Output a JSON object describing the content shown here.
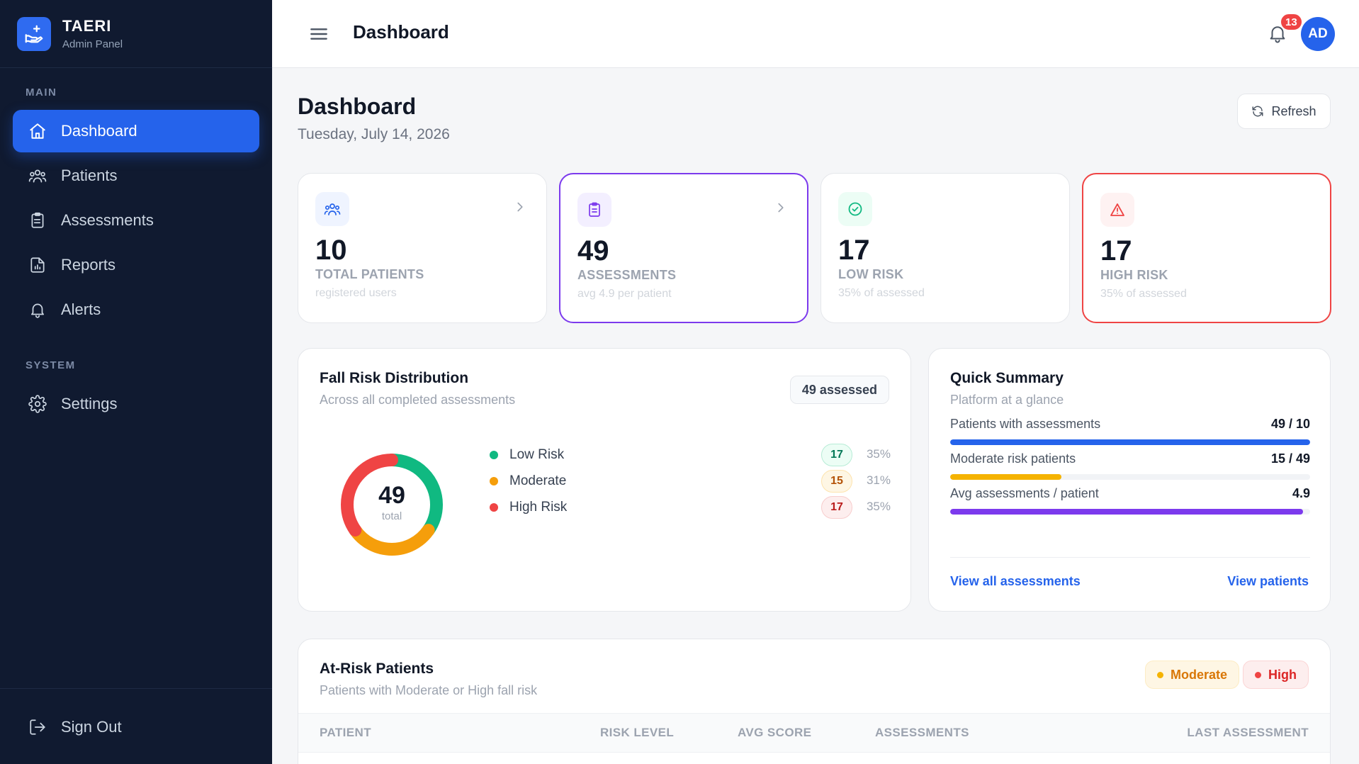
{
  "brand": {
    "name": "TAERI",
    "subtitle": "Admin Panel"
  },
  "sidebar": {
    "main_label": "MAIN",
    "system_label": "SYSTEM",
    "items": [
      {
        "label": "Dashboard",
        "icon": "home-icon",
        "active": true
      },
      {
        "label": "Patients",
        "icon": "users-icon"
      },
      {
        "label": "Assessments",
        "icon": "clipboard-icon"
      },
      {
        "label": "Reports",
        "icon": "report-icon"
      },
      {
        "label": "Alerts",
        "icon": "bell-icon"
      }
    ],
    "system_items": [
      {
        "label": "Settings",
        "icon": "gear-icon"
      }
    ],
    "signout": "Sign Out"
  },
  "header": {
    "title": "Dashboard",
    "notifications": "13",
    "avatar": "AD"
  },
  "page": {
    "title": "Dashboard",
    "date": "Tuesday, July 14, 2026",
    "refresh": "Refresh"
  },
  "stats": [
    {
      "value": "10",
      "label": "TOTAL PATIENTS",
      "sub": "registered users",
      "icon": "users-icon"
    },
    {
      "value": "49",
      "label": "ASSESSMENTS",
      "sub": "avg 4.9 per patient",
      "icon": "clipboard-icon"
    },
    {
      "value": "17",
      "label": "LOW RISK",
      "sub": "35% of assessed",
      "icon": "check-circle-icon"
    },
    {
      "value": "17",
      "label": "HIGH RISK",
      "sub": "35% of assessed",
      "icon": "warning-icon"
    }
  ],
  "distribution": {
    "title": "Fall Risk Distribution",
    "subtitle": "Across all completed assessments",
    "badge": "49 assessed",
    "total": "49",
    "total_caption": "total",
    "rows": [
      {
        "label": "Low Risk",
        "count": "17",
        "pct": "35%",
        "color": "#10b981"
      },
      {
        "label": "Moderate",
        "count": "15",
        "pct": "31%",
        "color": "#f59e0b"
      },
      {
        "label": "High Risk",
        "count": "17",
        "pct": "35%",
        "color": "#ef4444"
      }
    ]
  },
  "summary": {
    "title": "Quick Summary",
    "subtitle": "Platform at a glance",
    "rows": [
      {
        "label": "Patients with assessments",
        "value": "49 / 10",
        "fill": 1.0,
        "color": "#2563eb"
      },
      {
        "label": "Moderate risk patients",
        "value": "15 / 49",
        "fill": 0.31,
        "color": "#f5b301"
      },
      {
        "label": "Avg assessments / patient",
        "value": "4.9",
        "fill": 0.98,
        "color": "#7c3aed"
      }
    ],
    "link_assessments": "View all assessments",
    "link_patients": "View patients"
  },
  "atrisk": {
    "title": "At-Risk Patients",
    "subtitle": "Patients with Moderate or High fall risk",
    "filter_moderate": "Moderate",
    "filter_high": "High",
    "columns": [
      "PATIENT",
      "RISK LEVEL",
      "AVG SCORE",
      "ASSESSMENTS",
      "LAST ASSESSMENT"
    ]
  }
}
